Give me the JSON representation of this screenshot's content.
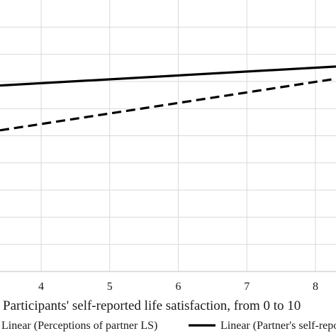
{
  "chart_data": {
    "type": "line",
    "xlabel": "Participants' self-reported life satisfaction, from 0 to 10",
    "xlim": [
      3.4,
      8.3
    ],
    "ylim": [
      0,
      10
    ],
    "x_ticks": [
      4,
      5,
      6,
      7,
      8
    ],
    "grid": "vertical and horizontal gridlines",
    "legend_position": "bottom",
    "series": [
      {
        "name": "Linear (Perceptions of partner LS)",
        "style": "dashed",
        "color": "#000000",
        "x": [
          3.4,
          8.3
        ],
        "y": [
          5.2,
          7.1
        ]
      },
      {
        "name": "Linear (Partner's self-reported LS)",
        "style": "solid",
        "color": "#000000",
        "x": [
          3.4,
          8.3
        ],
        "y": [
          6.85,
          7.55
        ]
      }
    ]
  }
}
